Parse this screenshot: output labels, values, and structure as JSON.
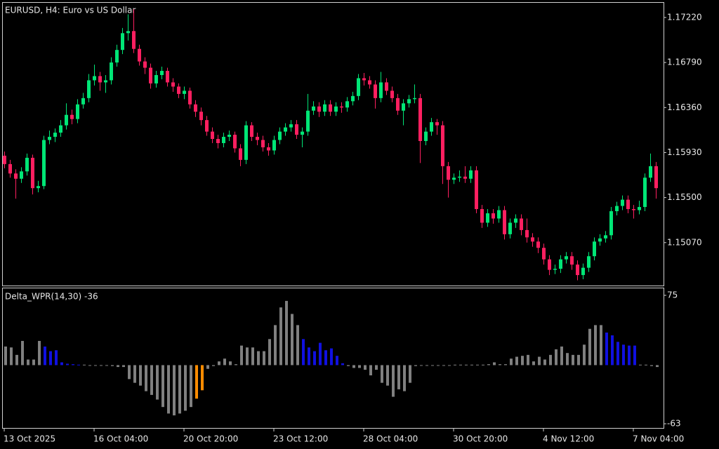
{
  "chart_data": [
    {
      "type": "candlestick",
      "title": "EURUSD, H4:  Euro vs US Dollar",
      "categories": [
        "13 Oct 2025",
        null,
        null,
        null,
        null,
        null,
        null,
        null,
        null,
        null,
        null,
        null,
        null,
        null,
        null,
        null,
        "16 Oct 04:00",
        null,
        null,
        null,
        null,
        null,
        null,
        null,
        null,
        null,
        null,
        null,
        null,
        null,
        null,
        null,
        "20 Oct 20:00",
        null,
        null,
        null,
        null,
        null,
        null,
        null,
        null,
        null,
        null,
        null,
        null,
        null,
        null,
        null,
        "23 Oct 12:00",
        null,
        null,
        null,
        null,
        null,
        null,
        null,
        null,
        null,
        null,
        null,
        null,
        null,
        null,
        null,
        "28 Oct 04:00",
        null,
        null,
        null,
        null,
        null,
        null,
        null,
        null,
        null,
        null,
        null,
        null,
        null,
        null,
        null,
        "30 Oct 20:00",
        null,
        null,
        null,
        null,
        null,
        null,
        null,
        null,
        null,
        null,
        null,
        null,
        null,
        null,
        null,
        "4 Nov 12:00",
        null,
        null,
        null,
        null,
        null,
        null,
        null,
        null,
        null,
        null,
        null,
        null,
        null,
        null,
        null,
        "7 Nov 04:00",
        null,
        null,
        null,
        null
      ],
      "open": [
        1.159,
        1.1582,
        1.1573,
        1.1568,
        1.1575,
        1.1588,
        1.1559,
        1.1561,
        1.1605,
        1.1608,
        1.1612,
        1.1619,
        1.1629,
        1.1625,
        1.1639,
        1.1645,
        1.1662,
        1.1666,
        1.166,
        1.1662,
        1.1679,
        1.1691,
        1.1707,
        1.1709,
        1.1692,
        1.168,
        1.1674,
        1.1659,
        1.1667,
        1.1671,
        1.166,
        1.1656,
        1.1649,
        1.1652,
        1.1639,
        1.1632,
        1.1624,
        1.1613,
        1.1606,
        1.1602,
        1.1608,
        1.161,
        1.1597,
        1.1586,
        1.1619,
        1.1608,
        1.1605,
        1.1598,
        1.1595,
        1.1605,
        1.1613,
        1.1617,
        1.162,
        1.161,
        1.1613,
        1.1633,
        1.1637,
        1.1632,
        1.1639,
        1.1632,
        1.1637,
        1.1636,
        1.1642,
        1.1647,
        1.1664,
        1.1662,
        1.1658,
        1.1645,
        1.166,
        1.1652,
        1.1645,
        1.1633,
        1.164,
        1.1644,
        1.1645,
        1.1604,
        1.1613,
        1.1622,
        1.1619,
        1.158,
        1.1567,
        1.1569,
        1.157,
        1.1568,
        1.1576,
        1.1539,
        1.1526,
        1.1535,
        1.153,
        1.1538,
        1.1515,
        1.1526,
        1.153,
        1.1519,
        1.1512,
        1.1508,
        1.1502,
        1.1491,
        1.1481,
        1.1482,
        1.1491,
        1.1494,
        1.1486,
        1.1476,
        1.1483,
        1.1494,
        1.1508,
        1.1511,
        1.1514,
        1.1537,
        1.1542,
        1.1548,
        1.1539,
        1.1538,
        1.1541,
        1.1569,
        1.158
      ],
      "high": [
        1.1594,
        1.1586,
        1.1577,
        1.1579,
        1.1592,
        1.1591,
        1.1566,
        1.1609,
        1.1614,
        1.1616,
        1.1624,
        1.164,
        1.1634,
        1.1644,
        1.165,
        1.1668,
        1.1677,
        1.167,
        1.1667,
        1.1684,
        1.1696,
        1.1712,
        1.1725,
        1.173,
        1.1696,
        1.1684,
        1.1678,
        1.1671,
        1.1675,
        1.1674,
        1.1664,
        1.1659,
        1.1656,
        1.1655,
        1.1643,
        1.1636,
        1.1628,
        1.1617,
        1.161,
        1.1612,
        1.1614,
        1.1613,
        1.1601,
        1.1623,
        1.1622,
        1.1612,
        1.1609,
        1.1602,
        1.1609,
        1.1617,
        1.1621,
        1.1624,
        1.1624,
        1.1617,
        1.1649,
        1.1642,
        1.1641,
        1.1643,
        1.1643,
        1.1641,
        1.1641,
        1.1646,
        1.1651,
        1.1668,
        1.1669,
        1.1666,
        1.1662,
        1.167,
        1.1664,
        1.1656,
        1.1649,
        1.1644,
        1.1648,
        1.1658,
        1.1649,
        1.1617,
        1.1626,
        1.1625,
        1.1623,
        1.1584,
        1.1573,
        1.1576,
        1.158,
        1.158,
        1.158,
        1.1543,
        1.1539,
        1.1539,
        1.1542,
        1.1542,
        1.153,
        1.1534,
        1.1534,
        1.153,
        1.1516,
        1.1512,
        1.1506,
        1.1495,
        1.1486,
        1.1495,
        1.1498,
        1.1498,
        1.149,
        1.1487,
        1.1498,
        1.1512,
        1.1515,
        1.1518,
        1.1541,
        1.1546,
        1.1552,
        1.1552,
        1.1543,
        1.1547,
        1.1573,
        1.1592,
        1.1584
      ],
      "low": [
        1.1578,
        1.1569,
        1.1549,
        1.1564,
        1.1571,
        1.1553,
        1.1555,
        1.1558,
        1.1601,
        1.1603,
        1.1608,
        1.1615,
        1.162,
        1.1621,
        1.1635,
        1.1641,
        1.1657,
        1.1652,
        1.165,
        1.1658,
        1.1675,
        1.1687,
        1.17,
        1.1688,
        1.1676,
        1.1668,
        1.1654,
        1.1655,
        1.1663,
        1.1656,
        1.1651,
        1.1645,
        1.1644,
        1.1635,
        1.1627,
        1.1619,
        1.1609,
        1.1602,
        1.1597,
        1.1598,
        1.1604,
        1.1593,
        1.158,
        1.1582,
        1.1604,
        1.16,
        1.1594,
        1.159,
        1.1591,
        1.1601,
        1.1609,
        1.1613,
        1.1606,
        1.1598,
        1.1609,
        1.1629,
        1.1627,
        1.1628,
        1.1628,
        1.1628,
        1.1631,
        1.1632,
        1.1638,
        1.1643,
        1.1657,
        1.1654,
        1.1635,
        1.1641,
        1.1648,
        1.1641,
        1.1629,
        1.1619,
        1.1636,
        1.164,
        1.1583,
        1.16,
        1.1609,
        1.161,
        1.1563,
        1.155,
        1.1563,
        1.1565,
        1.1564,
        1.1564,
        1.1535,
        1.1521,
        1.1522,
        1.1525,
        1.1526,
        1.151,
        1.1511,
        1.1521,
        1.1514,
        1.1507,
        1.1503,
        1.1497,
        1.1486,
        1.1476,
        1.1477,
        1.1478,
        1.1487,
        1.1481,
        1.1471,
        1.1472,
        1.1479,
        1.149,
        1.1504,
        1.1507,
        1.151,
        1.1533,
        1.1538,
        1.1535,
        1.153,
        1.1534,
        1.1537,
        1.1565,
        1.1549
      ],
      "close": [
        1.1582,
        1.1573,
        1.1568,
        1.1575,
        1.1588,
        1.1559,
        1.1561,
        1.1605,
        1.1608,
        1.1612,
        1.1619,
        1.1629,
        1.1625,
        1.1639,
        1.1645,
        1.1662,
        1.1666,
        1.166,
        1.1662,
        1.1679,
        1.1691,
        1.1707,
        1.1709,
        1.1692,
        1.168,
        1.1674,
        1.1659,
        1.1667,
        1.1671,
        1.166,
        1.1656,
        1.1649,
        1.1652,
        1.1639,
        1.1632,
        1.1624,
        1.1613,
        1.1606,
        1.1602,
        1.1608,
        1.161,
        1.1597,
        1.1586,
        1.1619,
        1.1608,
        1.1605,
        1.1598,
        1.1595,
        1.1605,
        1.1613,
        1.1617,
        1.162,
        1.161,
        1.1613,
        1.1633,
        1.1637,
        1.1632,
        1.1639,
        1.1632,
        1.1637,
        1.1636,
        1.1642,
        1.1647,
        1.1664,
        1.1662,
        1.1658,
        1.1645,
        1.166,
        1.1652,
        1.1645,
        1.1633,
        1.164,
        1.1644,
        1.1645,
        1.1604,
        1.1613,
        1.1622,
        1.1619,
        1.158,
        1.1567,
        1.1569,
        1.157,
        1.1568,
        1.1576,
        1.1539,
        1.1526,
        1.1535,
        1.153,
        1.1538,
        1.1515,
        1.1526,
        1.153,
        1.1519,
        1.1512,
        1.1508,
        1.1502,
        1.1491,
        1.1481,
        1.1482,
        1.1491,
        1.1494,
        1.1486,
        1.1476,
        1.1483,
        1.1494,
        1.1508,
        1.1511,
        1.1514,
        1.1537,
        1.1542,
        1.1548,
        1.1539,
        1.1538,
        1.1541,
        1.1569,
        1.158,
        1.1559
      ],
      "up_color": "#00e676",
      "down_color": "#ff1f60",
      "ylim": [
        1.1466,
        1.1736
      ],
      "yticks": [
        {
          "value": 1.1722,
          "label": "1.17220"
        },
        {
          "value": 1.1679,
          "label": "1.16790"
        },
        {
          "value": 1.1636,
          "label": "1.16360"
        },
        {
          "value": 1.1593,
          "label": "1.15930"
        },
        {
          "value": 1.155,
          "label": "1.15500"
        },
        {
          "value": 1.1507,
          "label": "1.15070"
        }
      ]
    },
    {
      "type": "bar",
      "title": "Delta_WPR(14,30) -36",
      "values": [
        20,
        19,
        11,
        26,
        6,
        6,
        26,
        20,
        15,
        16,
        3,
        1.5,
        1,
        0.5,
        0.5,
        -0.5,
        -0.5,
        -0.5,
        -0.5,
        -1,
        -2,
        -2,
        -15,
        -19,
        -22,
        -28,
        -32,
        -37,
        -45,
        -52,
        -54,
        -52,
        -49,
        -45,
        -36,
        -27,
        -4,
        -1,
        4,
        7,
        4,
        1,
        21,
        19,
        19,
        15,
        15,
        28,
        43,
        62,
        69,
        55,
        43,
        28,
        19,
        15,
        24,
        16,
        18,
        10,
        2,
        -1,
        -3,
        -3,
        -5,
        -11,
        -5,
        -19,
        -22,
        -34,
        -26,
        -28,
        -19,
        -1,
        -0.5,
        -0.5,
        -0.5,
        -0.5,
        -0.5,
        -0.5,
        0.5,
        0.5,
        0.5,
        0.5,
        0.5,
        0.5,
        1,
        3,
        1,
        1,
        7,
        9,
        10,
        11,
        4,
        9,
        6,
        11,
        17,
        20,
        13,
        11,
        11,
        22,
        39,
        43,
        43,
        35,
        32,
        25,
        22,
        21,
        21,
        0.5,
        0.5,
        -1,
        -2
      ],
      "colors": [
        "#808080",
        "#808080",
        "#808080",
        "#808080",
        "#808080",
        "#808080",
        "#808080",
        "#1010e0",
        "#1010e0",
        "#1010e0",
        "#1010e0",
        "#1010e0",
        "#1010e0",
        "#1010e0",
        "#808080",
        "#808080",
        "#808080",
        "#808080",
        "#808080",
        "#808080",
        "#808080",
        "#808080",
        "#808080",
        "#808080",
        "#808080",
        "#808080",
        "#808080",
        "#808080",
        "#808080",
        "#808080",
        "#808080",
        "#808080",
        "#808080",
        "#808080",
        "#ff8c00",
        "#ff8c00",
        "#808080",
        "#808080",
        "#808080",
        "#808080",
        "#808080",
        "#808080",
        "#808080",
        "#808080",
        "#808080",
        "#808080",
        "#808080",
        "#808080",
        "#808080",
        "#808080",
        "#808080",
        "#808080",
        "#808080",
        "#1010e0",
        "#1010e0",
        "#1010e0",
        "#1010e0",
        "#1010e0",
        "#1010e0",
        "#1010e0",
        "#1010e0",
        "#808080",
        "#808080",
        "#808080",
        "#808080",
        "#808080",
        "#808080",
        "#808080",
        "#808080",
        "#808080",
        "#808080",
        "#808080",
        "#808080",
        "#808080",
        "#808080",
        "#808080",
        "#808080",
        "#808080",
        "#808080",
        "#808080",
        "#808080",
        "#808080",
        "#808080",
        "#808080",
        "#808080",
        "#808080",
        "#808080",
        "#808080",
        "#808080",
        "#808080",
        "#808080",
        "#808080",
        "#808080",
        "#808080",
        "#808080",
        "#808080",
        "#808080",
        "#808080",
        "#808080",
        "#808080",
        "#808080",
        "#808080",
        "#808080",
        "#808080",
        "#808080",
        "#808080",
        "#808080",
        "#1010e0",
        "#1010e0",
        "#1010e0",
        "#1010e0",
        "#1010e0",
        "#1010e0",
        "#808080",
        "#808080",
        "#808080",
        "#808080"
      ],
      "ylim": [
        -67.5,
        82.5
      ],
      "yticks": [
        75,
        -63
      ]
    }
  ]
}
